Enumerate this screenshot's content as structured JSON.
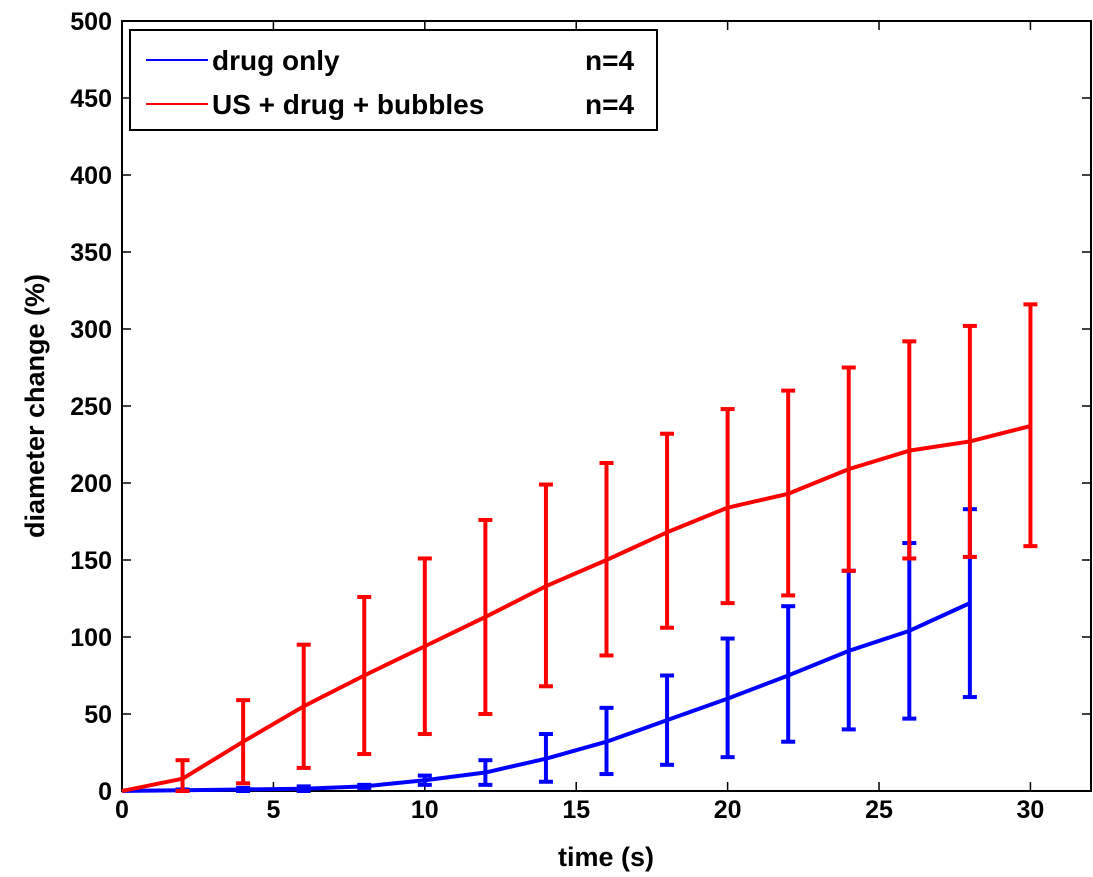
{
  "chart_data": {
    "type": "line",
    "title": "",
    "xlabel": "time (s)",
    "ylabel": "diameter change (%)",
    "xlim": [
      0,
      32
    ],
    "ylim": [
      0,
      500
    ],
    "xticks": [
      0,
      5,
      10,
      15,
      20,
      25,
      30
    ],
    "yticks": [
      0,
      50,
      100,
      150,
      200,
      250,
      300,
      350,
      400,
      450,
      500
    ],
    "grid": false,
    "legend_position": "top-left",
    "series": [
      {
        "name": "drug only",
        "n_label": "n=4",
        "color": "#0000ff",
        "x": [
          0,
          2,
          4,
          6,
          8,
          10,
          12,
          14,
          16,
          18,
          20,
          22,
          24,
          26,
          28
        ],
        "y": [
          0,
          0.5,
          1,
          1.5,
          3,
          7,
          12,
          21,
          32,
          46,
          60,
          75,
          91,
          104,
          122
        ],
        "err_low": [
          0,
          0,
          0,
          0,
          2,
          4,
          4,
          6,
          11,
          17,
          22,
          32,
          40,
          47,
          61
        ],
        "err_high": [
          0,
          1,
          2,
          3,
          4,
          10,
          20,
          37,
          54,
          75,
          99,
          120,
          143,
          161,
          183
        ]
      },
      {
        "name": "US + drug + bubbles",
        "n_label": "n=4",
        "color": "#ff0000",
        "x": [
          0,
          2,
          4,
          6,
          8,
          10,
          12,
          14,
          16,
          18,
          20,
          22,
          24,
          26,
          28,
          30
        ],
        "y": [
          0,
          8,
          32,
          55,
          75,
          94,
          113,
          133,
          150,
          168,
          184,
          193,
          209,
          221,
          227,
          237
        ],
        "err_low": [
          0,
          0,
          5,
          15,
          24,
          37,
          50,
          68,
          88,
          106,
          122,
          127,
          143,
          151,
          152,
          159
        ],
        "err_high": [
          0,
          20,
          59,
          95,
          126,
          151,
          176,
          199,
          213,
          232,
          248,
          260,
          275,
          292,
          302,
          316
        ]
      }
    ]
  }
}
